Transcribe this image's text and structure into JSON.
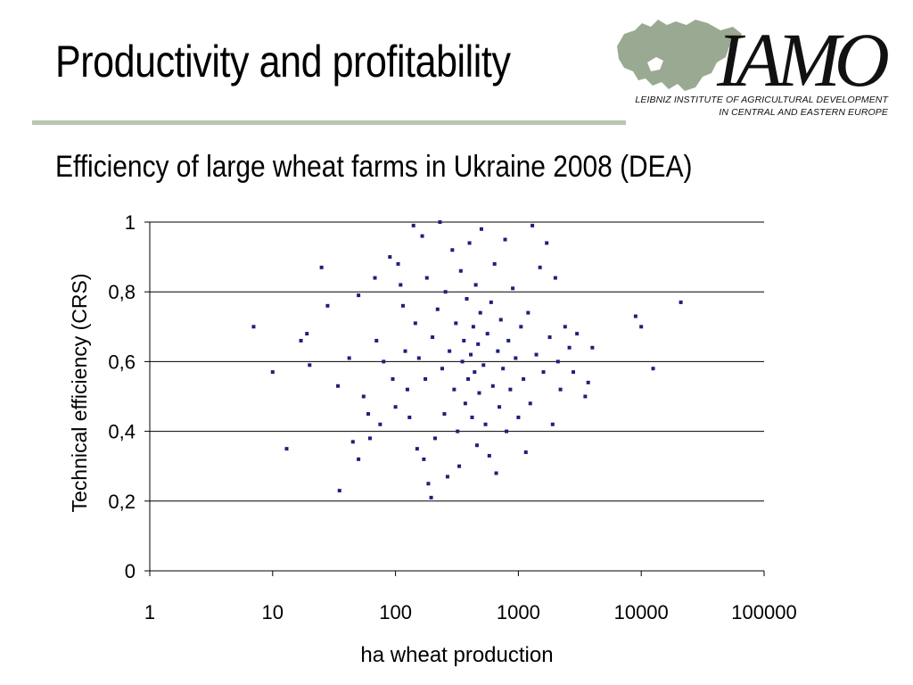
{
  "slide": {
    "title": "Productivity and profitability"
  },
  "logo": {
    "wordmark": "IAMO",
    "line1": "LEIBNIZ INSTITUTE OF AGRICULTURAL DEVELOPMENT",
    "line2": "IN CENTRAL AND EASTERN EUROPE",
    "color": "#9aaa92"
  },
  "chart_data": {
    "type": "scatter",
    "title": "Efficiency of large wheat farms in Ukraine 2008 (DEA)",
    "xlabel": "ha wheat production",
    "ylabel": "Technical efficiency (CRS)",
    "x_scale": "log",
    "xlim": [
      1,
      100000
    ],
    "ylim": [
      0,
      1
    ],
    "x_ticks": [
      {
        "value": 1,
        "label": "1"
      },
      {
        "value": 10,
        "label": "10"
      },
      {
        "value": 100,
        "label": "100"
      },
      {
        "value": 1000,
        "label": "1000"
      },
      {
        "value": 10000,
        "label": "10000"
      },
      {
        "value": 100000,
        "label": "100000"
      }
    ],
    "y_ticks": [
      {
        "value": 0,
        "label": "0"
      },
      {
        "value": 0.2,
        "label": "0,2"
      },
      {
        "value": 0.4,
        "label": "0,4"
      },
      {
        "value": 0.6,
        "label": "0,6"
      },
      {
        "value": 0.8,
        "label": "0,8"
      },
      {
        "value": 1,
        "label": "1"
      }
    ],
    "grid": "horizontal",
    "marker_color": "#1f1f7a",
    "points": [
      [
        7,
        0.7
      ],
      [
        10,
        0.57
      ],
      [
        13,
        0.35
      ],
      [
        17,
        0.66
      ],
      [
        19,
        0.68
      ],
      [
        20,
        0.59
      ],
      [
        25,
        0.87
      ],
      [
        28,
        0.76
      ],
      [
        34,
        0.53
      ],
      [
        35,
        0.23
      ],
      [
        42,
        0.61
      ],
      [
        45,
        0.37
      ],
      [
        50,
        0.32
      ],
      [
        50,
        0.79
      ],
      [
        55,
        0.5
      ],
      [
        60,
        0.45
      ],
      [
        62,
        0.38
      ],
      [
        68,
        0.84
      ],
      [
        70,
        0.66
      ],
      [
        75,
        0.42
      ],
      [
        80,
        0.6
      ],
      [
        90,
        0.9
      ],
      [
        95,
        0.55
      ],
      [
        100,
        0.47
      ],
      [
        105,
        0.88
      ],
      [
        110,
        0.82
      ],
      [
        115,
        0.76
      ],
      [
        120,
        0.63
      ],
      [
        125,
        0.52
      ],
      [
        130,
        0.44
      ],
      [
        140,
        0.99
      ],
      [
        145,
        0.71
      ],
      [
        150,
        0.35
      ],
      [
        155,
        0.61
      ],
      [
        165,
        0.96
      ],
      [
        170,
        0.32
      ],
      [
        175,
        0.55
      ],
      [
        180,
        0.84
      ],
      [
        185,
        0.25
      ],
      [
        195,
        0.21
      ],
      [
        200,
        0.67
      ],
      [
        210,
        0.38
      ],
      [
        220,
        0.75
      ],
      [
        230,
        1.0
      ],
      [
        240,
        0.58
      ],
      [
        250,
        0.45
      ],
      [
        255,
        0.8
      ],
      [
        265,
        0.27
      ],
      [
        275,
        0.63
      ],
      [
        290,
        0.92
      ],
      [
        300,
        0.52
      ],
      [
        310,
        0.71
      ],
      [
        320,
        0.4
      ],
      [
        330,
        0.3
      ],
      [
        340,
        0.86
      ],
      [
        350,
        0.6
      ],
      [
        360,
        0.66
      ],
      [
        370,
        0.48
      ],
      [
        380,
        0.78
      ],
      [
        390,
        0.55
      ],
      [
        400,
        0.94
      ],
      [
        410,
        0.62
      ],
      [
        420,
        0.44
      ],
      [
        430,
        0.7
      ],
      [
        440,
        0.57
      ],
      [
        450,
        0.82
      ],
      [
        460,
        0.36
      ],
      [
        470,
        0.65
      ],
      [
        480,
        0.51
      ],
      [
        490,
        0.74
      ],
      [
        500,
        0.98
      ],
      [
        520,
        0.59
      ],
      [
        540,
        0.42
      ],
      [
        560,
        0.68
      ],
      [
        580,
        0.33
      ],
      [
        600,
        0.77
      ],
      [
        620,
        0.53
      ],
      [
        640,
        0.88
      ],
      [
        660,
        0.28
      ],
      [
        680,
        0.63
      ],
      [
        700,
        0.47
      ],
      [
        720,
        0.72
      ],
      [
        750,
        0.58
      ],
      [
        780,
        0.95
      ],
      [
        800,
        0.4
      ],
      [
        830,
        0.66
      ],
      [
        860,
        0.52
      ],
      [
        900,
        0.81
      ],
      [
        950,
        0.61
      ],
      [
        1000,
        0.44
      ],
      [
        1050,
        0.7
      ],
      [
        1100,
        0.55
      ],
      [
        1150,
        0.34
      ],
      [
        1200,
        0.74
      ],
      [
        1250,
        0.48
      ],
      [
        1300,
        0.99
      ],
      [
        1400,
        0.62
      ],
      [
        1500,
        0.87
      ],
      [
        1600,
        0.57
      ],
      [
        1700,
        0.94
      ],
      [
        1800,
        0.67
      ],
      [
        1900,
        0.42
      ],
      [
        2000,
        0.84
      ],
      [
        2100,
        0.6
      ],
      [
        2200,
        0.52
      ],
      [
        2400,
        0.7
      ],
      [
        2600,
        0.64
      ],
      [
        2800,
        0.57
      ],
      [
        3000,
        0.68
      ],
      [
        3500,
        0.5
      ],
      [
        3700,
        0.54
      ],
      [
        4000,
        0.64
      ],
      [
        9000,
        0.73
      ],
      [
        10000,
        0.7
      ],
      [
        12500,
        0.58
      ],
      [
        21000,
        0.77
      ]
    ]
  }
}
